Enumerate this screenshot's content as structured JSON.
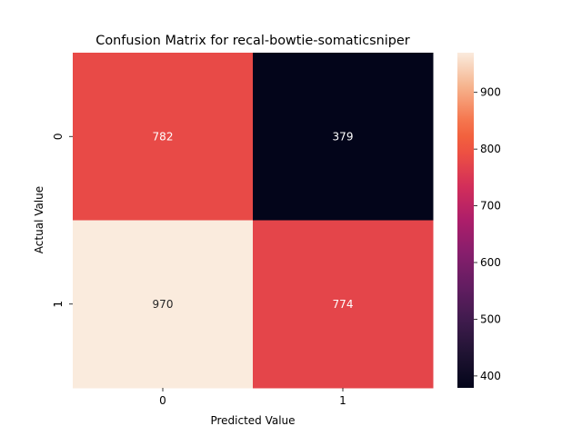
{
  "chart_data": {
    "type": "heatmap",
    "title": "Confusion Matrix for recal-bowtie-somaticsniper",
    "xlabel": "Predicted Value",
    "ylabel": "Actual Value",
    "x_categories": [
      "0",
      "1"
    ],
    "y_categories": [
      "0",
      "1"
    ],
    "values": [
      [
        782,
        379
      ],
      [
        970,
        774
      ]
    ],
    "colorbar": {
      "range": [
        379,
        970
      ],
      "ticks": [
        400,
        500,
        600,
        700,
        800,
        900
      ],
      "colormap": "rocket"
    },
    "colormap_stops": [
      [
        0.0,
        "#03051a"
      ],
      [
        0.1,
        "#1f1332"
      ],
      [
        0.2,
        "#3f1b4d"
      ],
      [
        0.3,
        "#621d61"
      ],
      [
        0.4,
        "#861e6c"
      ],
      [
        0.5,
        "#ad1e6a"
      ],
      [
        0.6,
        "#d22e5a"
      ],
      [
        0.7,
        "#ed5043"
      ],
      [
        0.75,
        "#f2613e"
      ],
      [
        0.8,
        "#f5774f"
      ],
      [
        0.9,
        "#f6b48e"
      ],
      [
        1.0,
        "#faebdd"
      ]
    ]
  }
}
